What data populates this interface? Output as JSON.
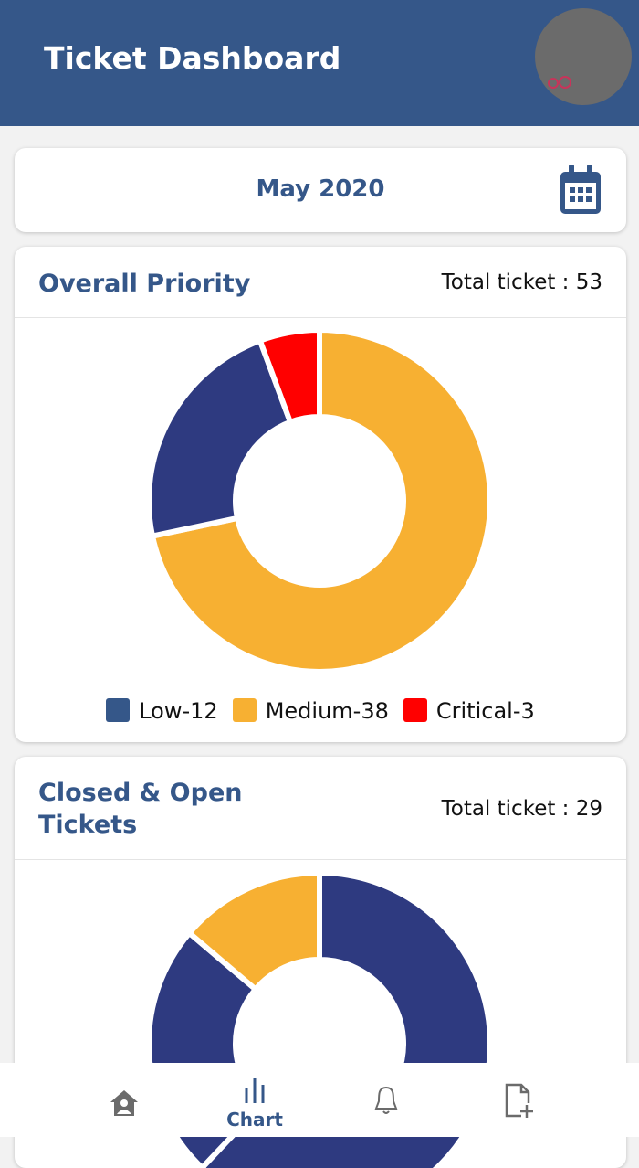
{
  "header": {
    "title": "Ticket Dashboard",
    "avatar_icon": "avatar-icon"
  },
  "date_picker": {
    "month": "May 2020",
    "icon": "calendar-icon"
  },
  "colors": {
    "primary": "#355789",
    "navy": "#2e3a80",
    "medium": "#f7b032",
    "critical": "#ff0000",
    "low_legend": "#355789"
  },
  "chart_data": [
    {
      "type": "pie",
      "donut": true,
      "title": "Overall Priority",
      "total_label": "Total ticket : 53",
      "categories": [
        "Low",
        "Medium",
        "Critical"
      ],
      "values": [
        12,
        38,
        3
      ],
      "legend": [
        "Low-12",
        "Medium-38",
        "Critical-3"
      ],
      "legend_position": "bottom",
      "colors": [
        "#2e3a80",
        "#f7b032",
        "#ff0000"
      ]
    },
    {
      "type": "pie",
      "donut": true,
      "title": "Closed & Open Tickets",
      "total_label": "Total ticket : 29",
      "values": [
        18,
        7,
        4
      ],
      "colors": [
        "#2e3a80",
        "#2e3a80",
        "#f7b032"
      ]
    }
  ],
  "nav": {
    "items": [
      {
        "icon": "home-icon"
      },
      {
        "icon": "chart-icon",
        "label": "Chart"
      },
      {
        "icon": "bell-icon"
      },
      {
        "icon": "add-file-icon"
      }
    ]
  }
}
